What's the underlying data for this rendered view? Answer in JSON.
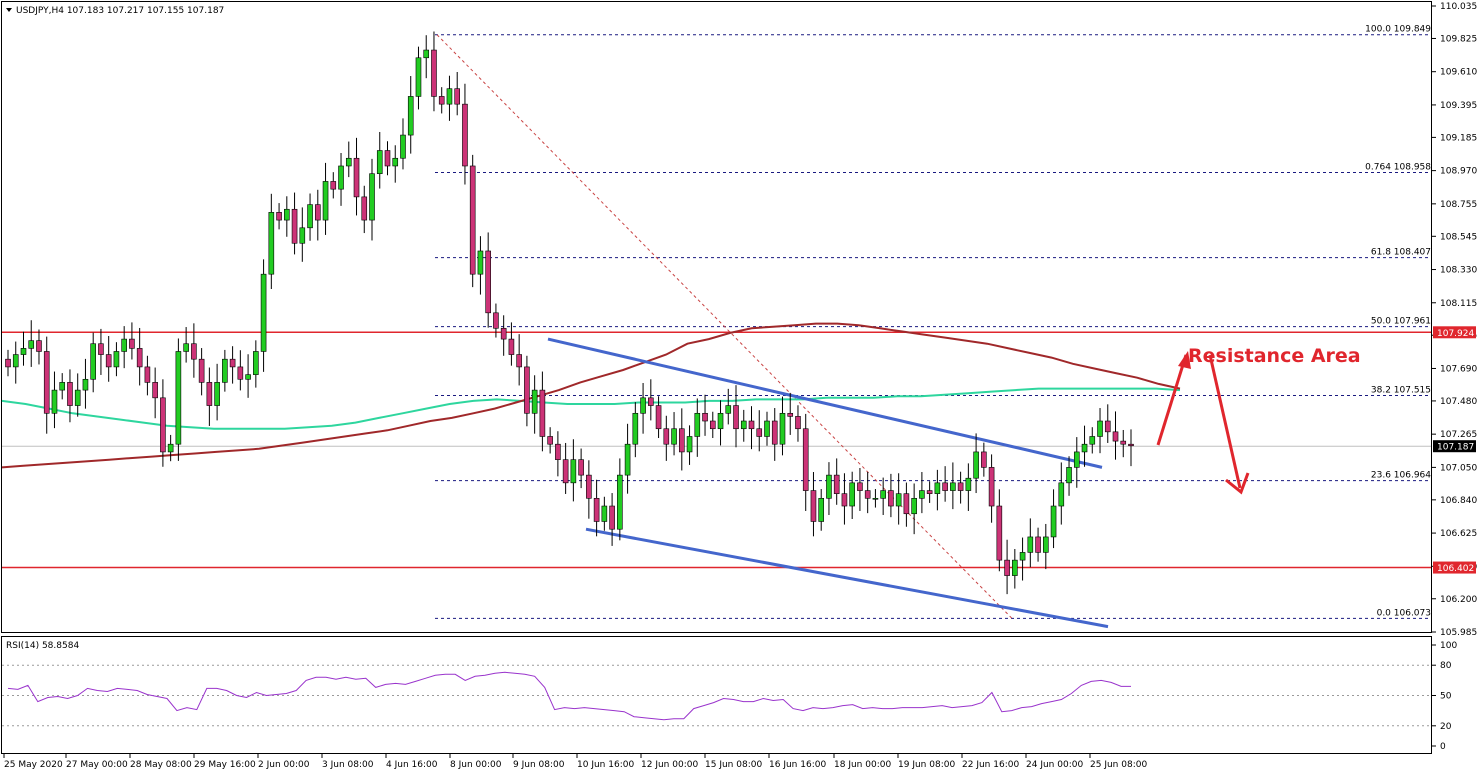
{
  "header": {
    "symbol_line": "USDJPY,H4  107.183 107.217 107.155 107.187",
    "rsi_label": "RSI(14) 58.8584"
  },
  "annotation": "Resistance Area",
  "colors": {
    "bull": "#22cc22",
    "bear": "#cc3377",
    "sma100": "#a0282a",
    "sma200": "#2ed69e",
    "channel": "#4466cc",
    "hline": "#e0262d",
    "fib": "#1a1a80",
    "rsi": "#9933cc",
    "annotation": "#e0262d"
  },
  "chart_data": [
    {
      "type": "candlestick",
      "title": "USDJPY,H4",
      "ylim": [
        105.985,
        110.035
      ],
      "y_ticks": [
        "110.035",
        "109.825",
        "109.610",
        "109.395",
        "109.185",
        "108.970",
        "108.755",
        "108.545",
        "108.330",
        "108.115",
        "107.905",
        "107.690",
        "107.480",
        "107.265",
        "107.050",
        "106.840",
        "106.625",
        "106.410",
        "106.200",
        "105.985"
      ],
      "x_ticks": [
        "25 May 2020",
        "27 May 00:00",
        "28 May 08:00",
        "29 May 16:00",
        "2 Jun 00:00",
        "3 Jun 08:00",
        "4 Jun 16:00",
        "8 Jun 00:00",
        "9 Jun 08:00",
        "10 Jun 16:00",
        "12 Jun 00:00",
        "15 Jun 08:00",
        "16 Jun 16:00",
        "18 Jun 00:00",
        "19 Jun 08:00",
        "22 Jun 16:00",
        "24 Jun 00:00",
        "25 Jun 08:00"
      ],
      "close": [
        107.7,
        107.78,
        107.82,
        107.87,
        107.8,
        107.4,
        107.55,
        107.6,
        107.45,
        107.55,
        107.62,
        107.85,
        107.78,
        107.7,
        107.8,
        107.88,
        107.82,
        107.7,
        107.6,
        107.5,
        107.15,
        107.2,
        107.8,
        107.85,
        107.75,
        107.6,
        107.45,
        107.6,
        107.75,
        107.7,
        107.62,
        107.65,
        107.8,
        108.3,
        108.7,
        108.65,
        108.72,
        108.5,
        108.6,
        108.75,
        108.65,
        108.9,
        108.85,
        109.0,
        109.05,
        108.8,
        108.65,
        108.95,
        109.1,
        109.0,
        109.05,
        109.2,
        109.45,
        109.7,
        109.75,
        109.45,
        109.4,
        109.5,
        109.4,
        109.0,
        108.3,
        108.45,
        108.05,
        107.95,
        107.88,
        107.78,
        107.7,
        107.4,
        107.55,
        107.25,
        107.2,
        107.1,
        106.95,
        107.1,
        107.0,
        106.85,
        106.7,
        106.8,
        106.65,
        107.0,
        107.2,
        107.4,
        107.5,
        107.45,
        107.3,
        107.2,
        107.3,
        107.15,
        107.25,
        107.4,
        107.35,
        107.3,
        107.4,
        107.45,
        107.3,
        107.35,
        107.3,
        107.25,
        107.35,
        107.2,
        107.4,
        107.38,
        107.3,
        106.9,
        106.7,
        106.85,
        107.0,
        106.88,
        106.8,
        106.95,
        106.9,
        106.85,
        106.85,
        106.9,
        106.8,
        106.88,
        106.75,
        106.85,
        106.9,
        106.88,
        106.95,
        106.9,
        106.95,
        106.9,
        106.98,
        107.15,
        107.05,
        106.8,
        106.45,
        106.35,
        106.45,
        106.5,
        106.6,
        106.5,
        106.6,
        106.8,
        106.95,
        107.05,
        107.15,
        107.2,
        107.25,
        107.35,
        107.28,
        107.22,
        107.2,
        107.19
      ],
      "open": [
        107.75,
        107.7,
        107.78,
        107.82,
        107.87,
        107.8,
        107.4,
        107.55,
        107.6,
        107.45,
        107.55,
        107.62,
        107.85,
        107.78,
        107.7,
        107.8,
        107.88,
        107.82,
        107.7,
        107.6,
        107.5,
        107.15,
        107.2,
        107.8,
        107.85,
        107.75,
        107.6,
        107.45,
        107.6,
        107.75,
        107.7,
        107.62,
        107.65,
        107.8,
        108.3,
        108.7,
        108.65,
        108.72,
        108.5,
        108.6,
        108.75,
        108.65,
        108.9,
        108.85,
        109.0,
        109.05,
        108.8,
        108.65,
        108.95,
        109.1,
        109.0,
        109.05,
        109.2,
        109.45,
        109.7,
        109.75,
        109.45,
        109.4,
        109.5,
        109.4,
        109.0,
        108.3,
        108.45,
        108.05,
        107.95,
        107.88,
        107.78,
        107.7,
        107.4,
        107.55,
        107.25,
        107.2,
        107.1,
        106.95,
        107.1,
        107.0,
        106.85,
        106.7,
        106.8,
        106.65,
        107.0,
        107.2,
        107.4,
        107.5,
        107.45,
        107.3,
        107.2,
        107.3,
        107.15,
        107.25,
        107.4,
        107.35,
        107.3,
        107.4,
        107.45,
        107.3,
        107.35,
        107.3,
        107.25,
        107.35,
        107.2,
        107.4,
        107.38,
        107.3,
        106.9,
        106.7,
        106.85,
        107.0,
        106.88,
        106.8,
        106.95,
        106.9,
        106.85,
        106.85,
        106.9,
        106.8,
        106.88,
        106.75,
        106.85,
        106.9,
        106.88,
        106.95,
        106.9,
        106.95,
        106.9,
        106.98,
        107.15,
        107.05,
        106.8,
        106.45,
        106.35,
        106.45,
        106.5,
        106.6,
        106.5,
        106.6,
        106.8,
        106.95,
        107.05,
        107.15,
        107.2,
        107.25,
        107.35,
        107.28,
        107.22,
        107.2
      ]
    },
    {
      "type": "line",
      "title": "RSI(14)",
      "ylim": [
        0,
        100
      ],
      "y_ticks": [
        "100",
        "80",
        "50",
        "20",
        "0"
      ],
      "series": [
        {
          "name": "RSI(14)",
          "values": [
            57,
            56,
            60,
            44,
            48,
            49,
            47,
            50,
            57,
            55,
            54,
            57,
            56,
            55,
            51,
            49,
            47,
            35,
            38,
            36,
            57,
            57,
            55,
            50,
            48,
            53,
            50,
            51,
            52,
            55,
            65,
            68,
            68,
            66,
            68,
            66,
            67,
            58,
            61,
            62,
            61,
            64,
            67,
            70,
            71,
            71,
            65,
            69,
            70,
            72,
            73,
            72,
            71,
            69,
            58,
            36,
            38,
            37,
            38,
            37,
            36,
            35,
            34,
            29,
            28,
            27,
            26,
            27,
            27,
            37,
            40,
            43,
            47,
            46,
            44,
            44,
            47,
            45,
            46,
            37,
            35,
            38,
            37,
            38,
            40,
            41,
            37,
            38,
            37,
            37,
            38,
            38,
            38,
            39,
            40,
            38,
            39,
            40,
            43,
            53,
            34,
            35,
            38,
            39,
            42,
            44,
            46,
            52,
            60,
            64,
            65,
            63,
            59,
            59
          ]
        }
      ]
    }
  ],
  "levels": {
    "resistance_tag": "107.924",
    "support_tag": "106.402",
    "price_tag": "107.187",
    "resistance_value": 107.924,
    "support_value": 106.402,
    "price_value": 107.187
  },
  "fibonacci": [
    {
      "label": "100.0 109.849",
      "value": 109.849
    },
    {
      "label": "0.764 108.958",
      "value": 108.958
    },
    {
      "label": "61.8 108.407",
      "value": 108.407
    },
    {
      "label": "50.0 107.961",
      "value": 107.961
    },
    {
      "label": "38.2 107.515",
      "value": 107.515
    },
    {
      "label": "23.6 106.964",
      "value": 106.964
    },
    {
      "label": "0.0 106.073",
      "value": 106.073
    }
  ],
  "sma100_values": [
    107.05,
    107.06,
    107.07,
    107.08,
    107.09,
    107.1,
    107.11,
    107.12,
    107.13,
    107.14,
    107.15,
    107.16,
    107.17,
    107.19,
    107.21,
    107.23,
    107.25,
    107.27,
    107.29,
    107.32,
    107.35,
    107.37,
    107.4,
    107.43,
    107.47,
    107.51,
    107.55,
    107.6,
    107.64,
    107.68,
    107.73,
    107.78,
    107.85,
    107.88,
    107.92,
    107.95,
    107.96,
    107.97,
    107.98,
    107.98,
    107.97,
    107.95,
    107.93,
    107.91,
    107.89,
    107.87,
    107.85,
    107.82,
    107.79,
    107.76,
    107.72,
    107.69,
    107.66,
    107.63,
    107.59,
    107.56
  ],
  "sma200_values": [
    107.48,
    107.46,
    107.43,
    107.4,
    107.38,
    107.36,
    107.34,
    107.32,
    107.31,
    107.3,
    107.3,
    107.3,
    107.3,
    107.31,
    107.32,
    107.34,
    107.37,
    107.4,
    107.43,
    107.46,
    107.48,
    107.49,
    107.48,
    107.47,
    107.46,
    107.46,
    107.46,
    107.47,
    107.47,
    107.47,
    107.48,
    107.48,
    107.49,
    107.49,
    107.49,
    107.5,
    107.5,
    107.5,
    107.51,
    107.51,
    107.52,
    107.53,
    107.54,
    107.55,
    107.56,
    107.56,
    107.56,
    107.56,
    107.56,
    107.56,
    107.55
  ]
}
